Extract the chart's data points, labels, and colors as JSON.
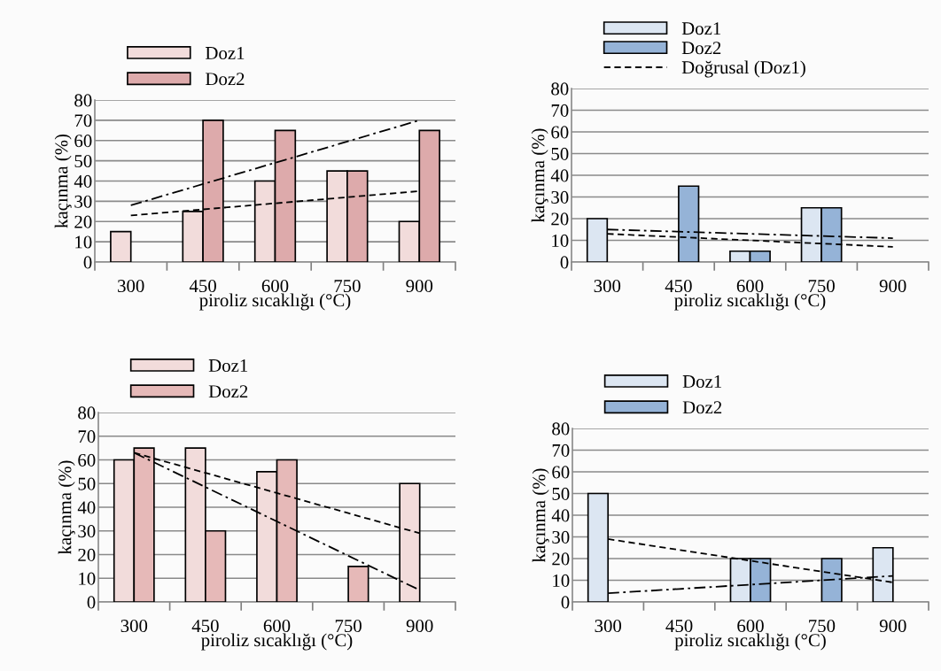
{
  "chart_data": [
    {
      "type": "bar",
      "xlabel": "piroliz sıcaklığı (°C)",
      "ylabel": "kaçınma (%)",
      "categories": [
        "300",
        "450",
        "600",
        "750",
        "900"
      ],
      "ylim": [
        0,
        80
      ],
      "yticks": [
        0,
        10,
        20,
        30,
        40,
        50,
        60,
        70,
        80
      ],
      "grid": "y",
      "legend": "top left",
      "series": [
        {
          "name": "Doz1",
          "color": "#f2dcdb",
          "values": [
            15,
            25,
            40,
            45,
            20
          ]
        },
        {
          "name": "Doz2",
          "color": "#ddaaab",
          "values": [
            null,
            70,
            65,
            45,
            65
          ]
        },
        {
          "type": "line",
          "color": "#000000",
          "line_style": "dashed",
          "values": [
            23,
            26,
            29,
            32,
            35
          ]
        },
        {
          "type": "line",
          "color": "#000000",
          "line_style": "dashdot",
          "values": [
            28,
            38.5,
            49,
            59.5,
            70
          ]
        }
      ]
    },
    {
      "type": "bar",
      "xlabel": "piroliz sıcaklığı (°C)",
      "ylabel": "kaçınma (%)",
      "categories": [
        "300",
        "450",
        "600",
        "750",
        "900"
      ],
      "ylim": [
        0,
        80
      ],
      "yticks": [
        0,
        10,
        20,
        30,
        40,
        50,
        60,
        70,
        80
      ],
      "grid": "y",
      "legend": "top left",
      "series": [
        {
          "name": "Doz1",
          "color": "#dce6f2",
          "values": [
            20,
            null,
            5,
            25,
            null
          ]
        },
        {
          "name": "Doz2",
          "color": "#95b3d7",
          "values": [
            null,
            35,
            5,
            25,
            null
          ]
        },
        {
          "type": "line",
          "name": "Doğrusal (Doz1)",
          "color": "#000000",
          "line_style": "dashed",
          "values": [
            13,
            11.5,
            10,
            8.5,
            7
          ]
        },
        {
          "type": "line",
          "color": "#000000",
          "line_style": "dashdot",
          "values": [
            15,
            14,
            13,
            12,
            11
          ]
        }
      ]
    },
    {
      "type": "bar",
      "xlabel": "piroliz sıcaklığı (°C)",
      "ylabel": "kaçınma (%)",
      "categories": [
        "300",
        "450",
        "600",
        "750",
        "900"
      ],
      "ylim": [
        0,
        80
      ],
      "yticks": [
        0,
        10,
        20,
        30,
        40,
        50,
        60,
        70,
        80
      ],
      "grid": "y",
      "legend": "top left",
      "series": [
        {
          "name": "Doz1",
          "color": "#f2dcdb",
          "values": [
            60,
            65,
            55,
            null,
            50
          ]
        },
        {
          "name": "Doz2",
          "color": "#e6b9b8",
          "values": [
            65,
            30,
            60,
            15,
            null
          ]
        },
        {
          "type": "line",
          "color": "#000000",
          "line_style": "dashed",
          "values": [
            63,
            54.5,
            46,
            37.5,
            29
          ]
        },
        {
          "type": "line",
          "color": "#000000",
          "line_style": "dashdot",
          "values": [
            63,
            48.5,
            34,
            19.5,
            5
          ]
        }
      ]
    },
    {
      "type": "bar",
      "xlabel": "piroliz sıcaklığı (°C)",
      "ylabel": "kaçınma (%)",
      "categories": [
        "300",
        "450",
        "600",
        "750",
        "900"
      ],
      "ylim": [
        0,
        80
      ],
      "yticks": [
        0,
        10,
        20,
        30,
        40,
        50,
        60,
        70,
        80
      ],
      "grid": "y",
      "legend": "top left",
      "series": [
        {
          "name": "Doz1",
          "color": "#dce6f2",
          "values": [
            50,
            null,
            20,
            null,
            25
          ]
        },
        {
          "name": "Doz2",
          "color": "#95b3d7",
          "values": [
            null,
            null,
            20,
            20,
            null
          ]
        },
        {
          "type": "line",
          "color": "#000000",
          "line_style": "dashed",
          "values": [
            29,
            24,
            19,
            14,
            9
          ]
        },
        {
          "type": "line",
          "color": "#000000",
          "line_style": "dashdot",
          "values": [
            4,
            6,
            8,
            10,
            12
          ]
        }
      ]
    }
  ]
}
